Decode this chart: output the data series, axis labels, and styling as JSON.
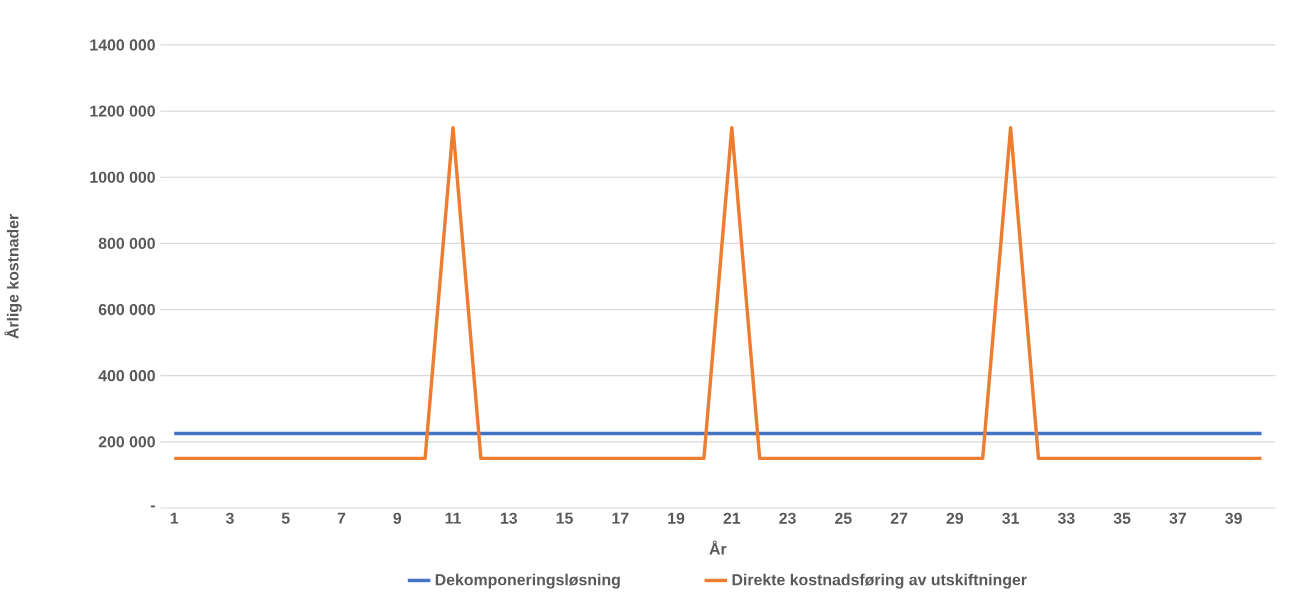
{
  "chart_data": {
    "type": "line",
    "xlabel": "År",
    "ylabel": "Årlige kostnader",
    "categories": [
      "1",
      null,
      "3",
      null,
      "5",
      null,
      "7",
      null,
      "9",
      null,
      "11",
      null,
      "13",
      null,
      "15",
      null,
      "17",
      null,
      "19",
      null,
      "21",
      null,
      "23",
      null,
      "25",
      null,
      "27",
      null,
      "29",
      null,
      "31",
      null,
      "33",
      null,
      "35",
      null,
      "37",
      null,
      "39",
      null
    ],
    "series": [
      {
        "name": "Dekomponeringsløsning",
        "color": "#4472c4",
        "values": [
          225000,
          225000,
          225000,
          225000,
          225000,
          225000,
          225000,
          225000,
          225000,
          225000,
          225000,
          225000,
          225000,
          225000,
          225000,
          225000,
          225000,
          225000,
          225000,
          225000,
          225000,
          225000,
          225000,
          225000,
          225000,
          225000,
          225000,
          225000,
          225000,
          225000,
          225000,
          225000,
          225000,
          225000,
          225000,
          225000,
          225000,
          225000,
          225000,
          225000
        ]
      },
      {
        "name": "Direkte kostnadsføring av utskiftninger",
        "color": "#ed7d31",
        "values": [
          150000,
          150000,
          150000,
          150000,
          150000,
          150000,
          150000,
          150000,
          150000,
          150000,
          1150000,
          150000,
          150000,
          150000,
          150000,
          150000,
          150000,
          150000,
          150000,
          150000,
          1150000,
          150000,
          150000,
          150000,
          150000,
          150000,
          150000,
          150000,
          150000,
          150000,
          1150000,
          150000,
          150000,
          150000,
          150000,
          150000,
          150000,
          150000,
          150000,
          150000
        ]
      }
    ],
    "ylim": [
      0,
      1400000
    ],
    "yticks": [
      {
        "value": 0,
        "label": "-"
      },
      {
        "value": 200000,
        "label": "200 000"
      },
      {
        "value": 400000,
        "label": "400 000"
      },
      {
        "value": 600000,
        "label": "600 000"
      },
      {
        "value": 800000,
        "label": "800 000"
      },
      {
        "value": 1000000,
        "label": "1000 000"
      },
      {
        "value": 1200000,
        "label": "1200 000"
      },
      {
        "value": 1400000,
        "label": "1400 000"
      }
    ],
    "grid": "y",
    "legend": "bottom",
    "marker": "none",
    "line_style": "solid"
  }
}
